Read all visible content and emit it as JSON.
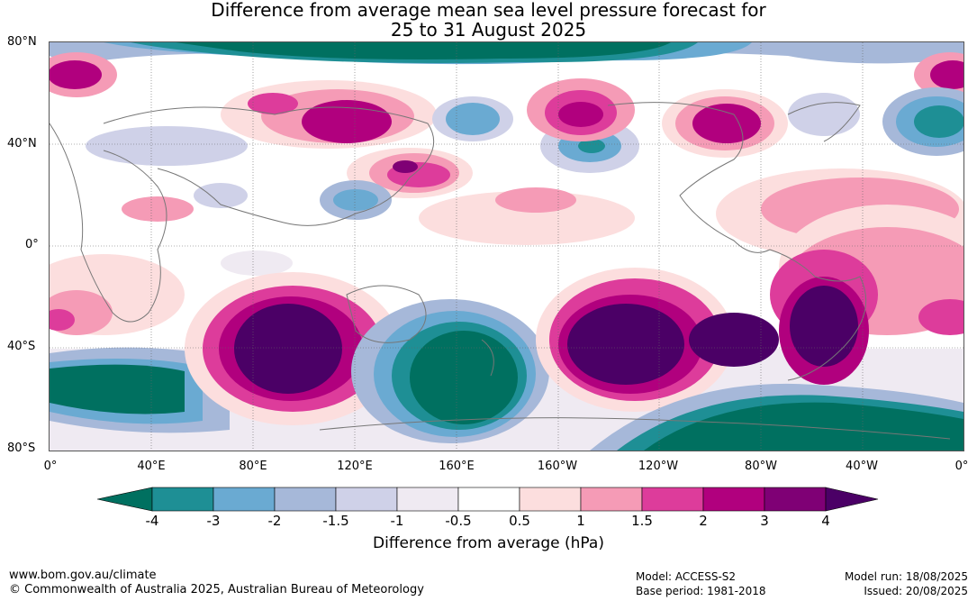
{
  "title": {
    "line1": "Difference from average mean sea level pressure forecast for",
    "line2": "25 to 31 August 2025"
  },
  "map": {
    "lat_labels": [
      "80°N",
      "40°N",
      "0°",
      "40°S",
      "80°S"
    ],
    "lon_labels": [
      "0°",
      "40°E",
      "80°E",
      "120°E",
      "160°E",
      "160°W",
      "120°W",
      "80°W",
      "40°W",
      "0°"
    ]
  },
  "colorbar": {
    "ticks": [
      "-4",
      "-3",
      "-2",
      "-1.5",
      "-1",
      "-0.5",
      "0.5",
      "1",
      "1.5",
      "2",
      "3",
      "4"
    ],
    "colors": [
      "#007060",
      "#1e8f95",
      "#6aaad2",
      "#a6b8d9",
      "#cfd1e8",
      "#efeaf2",
      "#ffffff",
      "#fcdede",
      "#f59bb6",
      "#dd3c9b",
      "#b1007e",
      "#7f0075",
      "#4b0066"
    ],
    "label": "Difference from average (hPa)"
  },
  "footer": {
    "website": "www.bom.gov.au/climate",
    "copyright": "© Commonwealth of Australia 2025, Australian Bureau of Meteorology",
    "model": "Model: ACCESS-S2",
    "base_period": "Base period: 1981-2018",
    "model_run": "Model run: 18/08/2025",
    "issued": "Issued: 20/08/2025"
  }
}
